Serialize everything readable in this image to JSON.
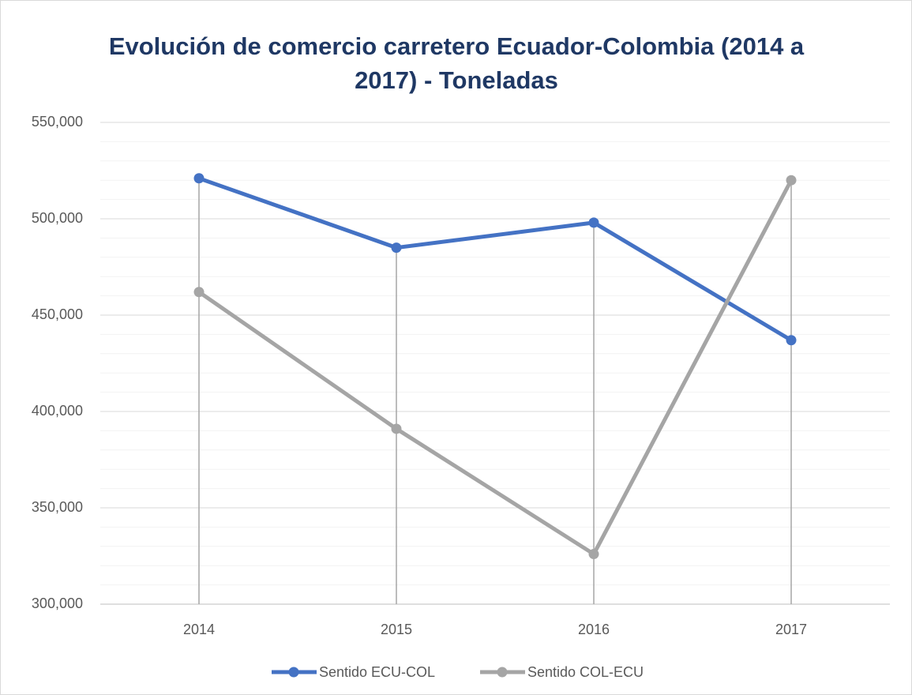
{
  "chart_data": {
    "type": "line",
    "title": "Evolución de comercio carretero Ecuador-Colombia (2014 a 2017) - Toneladas",
    "categories": [
      "2014",
      "2015",
      "2016",
      "2017"
    ],
    "series": [
      {
        "name": "Sentido ECU-COL",
        "color": "#4472c4",
        "values": [
          521000,
          485000,
          498000,
          437000
        ]
      },
      {
        "name": "Sentido COL-ECU",
        "color": "#a5a5a5",
        "values": [
          462000,
          391000,
          326000,
          520000
        ]
      }
    ],
    "ylim": [
      300000,
      550000
    ],
    "yticks": [
      {
        "value": 300000,
        "label": "300,000"
      },
      {
        "value": 350000,
        "label": "350,000"
      },
      {
        "value": 400000,
        "label": "400,000"
      },
      {
        "value": 450000,
        "label": "450,000"
      },
      {
        "value": 500000,
        "label": "500,000"
      },
      {
        "value": 550000,
        "label": "550,000"
      }
    ],
    "grid": true,
    "minor_grid_step": 10000,
    "drop_lines": true,
    "legend": "bottom"
  }
}
